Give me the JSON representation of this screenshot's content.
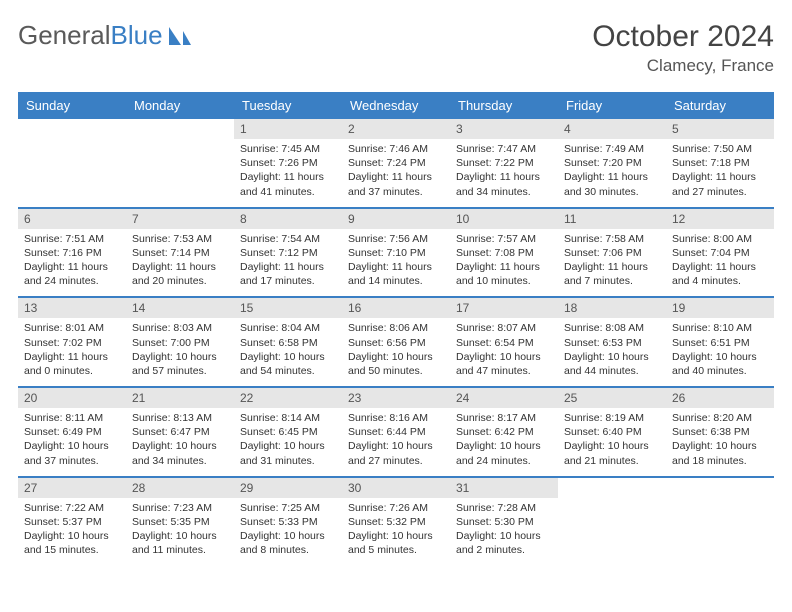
{
  "logo": {
    "text1": "General",
    "text2": "Blue"
  },
  "title": "October 2024",
  "location": "Clamecy, France",
  "colors": {
    "header_bg": "#3a7fc4",
    "header_text": "#ffffff",
    "daynum_bg": "#e6e6e6",
    "row_border": "#3a7fc4",
    "body_text": "#333333",
    "title_text": "#444444",
    "logo_gray": "#5a5a5a",
    "logo_blue": "#3a7fc4"
  },
  "day_headers": [
    "Sunday",
    "Monday",
    "Tuesday",
    "Wednesday",
    "Thursday",
    "Friday",
    "Saturday"
  ],
  "weeks": [
    [
      {
        "num": "",
        "sunrise": "",
        "sunset": "",
        "daylight": ""
      },
      {
        "num": "",
        "sunrise": "",
        "sunset": "",
        "daylight": ""
      },
      {
        "num": "1",
        "sunrise": "Sunrise: 7:45 AM",
        "sunset": "Sunset: 7:26 PM",
        "daylight": "Daylight: 11 hours and 41 minutes."
      },
      {
        "num": "2",
        "sunrise": "Sunrise: 7:46 AM",
        "sunset": "Sunset: 7:24 PM",
        "daylight": "Daylight: 11 hours and 37 minutes."
      },
      {
        "num": "3",
        "sunrise": "Sunrise: 7:47 AM",
        "sunset": "Sunset: 7:22 PM",
        "daylight": "Daylight: 11 hours and 34 minutes."
      },
      {
        "num": "4",
        "sunrise": "Sunrise: 7:49 AM",
        "sunset": "Sunset: 7:20 PM",
        "daylight": "Daylight: 11 hours and 30 minutes."
      },
      {
        "num": "5",
        "sunrise": "Sunrise: 7:50 AM",
        "sunset": "Sunset: 7:18 PM",
        "daylight": "Daylight: 11 hours and 27 minutes."
      }
    ],
    [
      {
        "num": "6",
        "sunrise": "Sunrise: 7:51 AM",
        "sunset": "Sunset: 7:16 PM",
        "daylight": "Daylight: 11 hours and 24 minutes."
      },
      {
        "num": "7",
        "sunrise": "Sunrise: 7:53 AM",
        "sunset": "Sunset: 7:14 PM",
        "daylight": "Daylight: 11 hours and 20 minutes."
      },
      {
        "num": "8",
        "sunrise": "Sunrise: 7:54 AM",
        "sunset": "Sunset: 7:12 PM",
        "daylight": "Daylight: 11 hours and 17 minutes."
      },
      {
        "num": "9",
        "sunrise": "Sunrise: 7:56 AM",
        "sunset": "Sunset: 7:10 PM",
        "daylight": "Daylight: 11 hours and 14 minutes."
      },
      {
        "num": "10",
        "sunrise": "Sunrise: 7:57 AM",
        "sunset": "Sunset: 7:08 PM",
        "daylight": "Daylight: 11 hours and 10 minutes."
      },
      {
        "num": "11",
        "sunrise": "Sunrise: 7:58 AM",
        "sunset": "Sunset: 7:06 PM",
        "daylight": "Daylight: 11 hours and 7 minutes."
      },
      {
        "num": "12",
        "sunrise": "Sunrise: 8:00 AM",
        "sunset": "Sunset: 7:04 PM",
        "daylight": "Daylight: 11 hours and 4 minutes."
      }
    ],
    [
      {
        "num": "13",
        "sunrise": "Sunrise: 8:01 AM",
        "sunset": "Sunset: 7:02 PM",
        "daylight": "Daylight: 11 hours and 0 minutes."
      },
      {
        "num": "14",
        "sunrise": "Sunrise: 8:03 AM",
        "sunset": "Sunset: 7:00 PM",
        "daylight": "Daylight: 10 hours and 57 minutes."
      },
      {
        "num": "15",
        "sunrise": "Sunrise: 8:04 AM",
        "sunset": "Sunset: 6:58 PM",
        "daylight": "Daylight: 10 hours and 54 minutes."
      },
      {
        "num": "16",
        "sunrise": "Sunrise: 8:06 AM",
        "sunset": "Sunset: 6:56 PM",
        "daylight": "Daylight: 10 hours and 50 minutes."
      },
      {
        "num": "17",
        "sunrise": "Sunrise: 8:07 AM",
        "sunset": "Sunset: 6:54 PM",
        "daylight": "Daylight: 10 hours and 47 minutes."
      },
      {
        "num": "18",
        "sunrise": "Sunrise: 8:08 AM",
        "sunset": "Sunset: 6:53 PM",
        "daylight": "Daylight: 10 hours and 44 minutes."
      },
      {
        "num": "19",
        "sunrise": "Sunrise: 8:10 AM",
        "sunset": "Sunset: 6:51 PM",
        "daylight": "Daylight: 10 hours and 40 minutes."
      }
    ],
    [
      {
        "num": "20",
        "sunrise": "Sunrise: 8:11 AM",
        "sunset": "Sunset: 6:49 PM",
        "daylight": "Daylight: 10 hours and 37 minutes."
      },
      {
        "num": "21",
        "sunrise": "Sunrise: 8:13 AM",
        "sunset": "Sunset: 6:47 PM",
        "daylight": "Daylight: 10 hours and 34 minutes."
      },
      {
        "num": "22",
        "sunrise": "Sunrise: 8:14 AM",
        "sunset": "Sunset: 6:45 PM",
        "daylight": "Daylight: 10 hours and 31 minutes."
      },
      {
        "num": "23",
        "sunrise": "Sunrise: 8:16 AM",
        "sunset": "Sunset: 6:44 PM",
        "daylight": "Daylight: 10 hours and 27 minutes."
      },
      {
        "num": "24",
        "sunrise": "Sunrise: 8:17 AM",
        "sunset": "Sunset: 6:42 PM",
        "daylight": "Daylight: 10 hours and 24 minutes."
      },
      {
        "num": "25",
        "sunrise": "Sunrise: 8:19 AM",
        "sunset": "Sunset: 6:40 PM",
        "daylight": "Daylight: 10 hours and 21 minutes."
      },
      {
        "num": "26",
        "sunrise": "Sunrise: 8:20 AM",
        "sunset": "Sunset: 6:38 PM",
        "daylight": "Daylight: 10 hours and 18 minutes."
      }
    ],
    [
      {
        "num": "27",
        "sunrise": "Sunrise: 7:22 AM",
        "sunset": "Sunset: 5:37 PM",
        "daylight": "Daylight: 10 hours and 15 minutes."
      },
      {
        "num": "28",
        "sunrise": "Sunrise: 7:23 AM",
        "sunset": "Sunset: 5:35 PM",
        "daylight": "Daylight: 10 hours and 11 minutes."
      },
      {
        "num": "29",
        "sunrise": "Sunrise: 7:25 AM",
        "sunset": "Sunset: 5:33 PM",
        "daylight": "Daylight: 10 hours and 8 minutes."
      },
      {
        "num": "30",
        "sunrise": "Sunrise: 7:26 AM",
        "sunset": "Sunset: 5:32 PM",
        "daylight": "Daylight: 10 hours and 5 minutes."
      },
      {
        "num": "31",
        "sunrise": "Sunrise: 7:28 AM",
        "sunset": "Sunset: 5:30 PM",
        "daylight": "Daylight: 10 hours and 2 minutes."
      },
      {
        "num": "",
        "sunrise": "",
        "sunset": "",
        "daylight": ""
      },
      {
        "num": "",
        "sunrise": "",
        "sunset": "",
        "daylight": ""
      }
    ]
  ]
}
